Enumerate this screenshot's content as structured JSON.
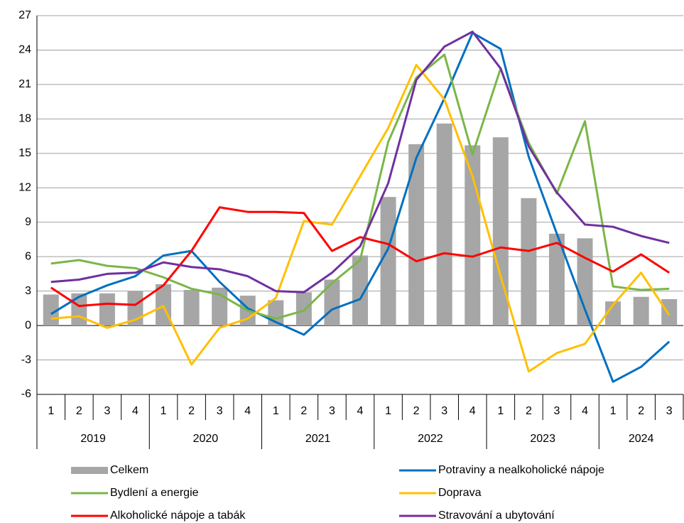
{
  "chart_data": {
    "type": "bar_line",
    "categories": [
      "1",
      "2",
      "3",
      "4",
      "1",
      "2",
      "3",
      "4",
      "1",
      "2",
      "3",
      "4",
      "1",
      "2",
      "3",
      "4",
      "1",
      "2",
      "3",
      "4",
      "1",
      "2",
      "3"
    ],
    "year_groups": [
      "2019",
      "2020",
      "2021",
      "2022",
      "2023",
      "2024"
    ],
    "series": [
      {
        "name": "Celkem",
        "kind": "bar",
        "color": "#a6a6a6",
        "values": [
          2.7,
          2.8,
          2.8,
          3.0,
          3.6,
          3.1,
          3.3,
          2.6,
          2.2,
          2.9,
          4.0,
          6.1,
          11.2,
          15.8,
          17.6,
          15.7,
          16.4,
          11.1,
          8.0,
          7.6,
          2.1,
          2.5,
          2.3
        ]
      },
      {
        "name": "Potraviny a nealkoholické nápoje",
        "kind": "line",
        "color": "#0070c0",
        "values": [
          1.0,
          2.5,
          3.5,
          4.3,
          6.1,
          6.5,
          3.8,
          1.5,
          0.3,
          -0.8,
          1.4,
          2.3,
          6.7,
          14.6,
          19.8,
          25.5,
          24.1,
          14.7,
          8.0,
          1.4,
          -4.9,
          -3.6,
          -1.4
        ]
      },
      {
        "name": "Bydlení a energie",
        "kind": "line",
        "color": "#7ab648",
        "values": [
          5.4,
          5.7,
          5.2,
          5.0,
          4.2,
          3.2,
          2.7,
          1.3,
          0.6,
          1.3,
          3.7,
          5.7,
          16.0,
          21.6,
          23.6,
          14.9,
          22.4,
          15.9,
          11.5,
          17.8,
          3.4,
          3.1,
          3.2
        ]
      },
      {
        "name": "Doprava",
        "kind": "line",
        "color": "#ffc000",
        "values": [
          0.6,
          0.8,
          -0.2,
          0.5,
          1.7,
          -3.4,
          -0.2,
          0.6,
          2.4,
          9.1,
          8.8,
          13.0,
          17.2,
          22.7,
          19.7,
          13.0,
          4.3,
          -4.0,
          -2.4,
          -1.6,
          1.8,
          4.6,
          0.9
        ]
      },
      {
        "name": "Alkoholické nápoje a tabák",
        "kind": "line",
        "color": "#ff0000",
        "values": [
          3.3,
          1.7,
          1.9,
          1.8,
          3.5,
          6.5,
          10.3,
          9.9,
          9.9,
          9.8,
          6.5,
          7.7,
          7.1,
          5.6,
          6.3,
          6.0,
          6.8,
          6.5,
          7.2,
          5.9,
          4.7,
          6.2,
          4.6
        ]
      },
      {
        "name": "Stravování a ubytování",
        "kind": "line",
        "color": "#7030a0",
        "values": [
          3.8,
          4.0,
          4.5,
          4.6,
          5.5,
          5.1,
          4.9,
          4.3,
          3.0,
          2.9,
          4.6,
          6.9,
          12.4,
          21.4,
          24.3,
          25.6,
          22.4,
          15.6,
          11.6,
          8.8,
          8.6,
          7.8,
          7.2
        ]
      }
    ],
    "ylim": [
      -6,
      27
    ],
    "yticks": [
      -6,
      -3,
      0,
      3,
      6,
      9,
      12,
      15,
      18,
      21,
      24,
      27
    ],
    "grid": true
  }
}
